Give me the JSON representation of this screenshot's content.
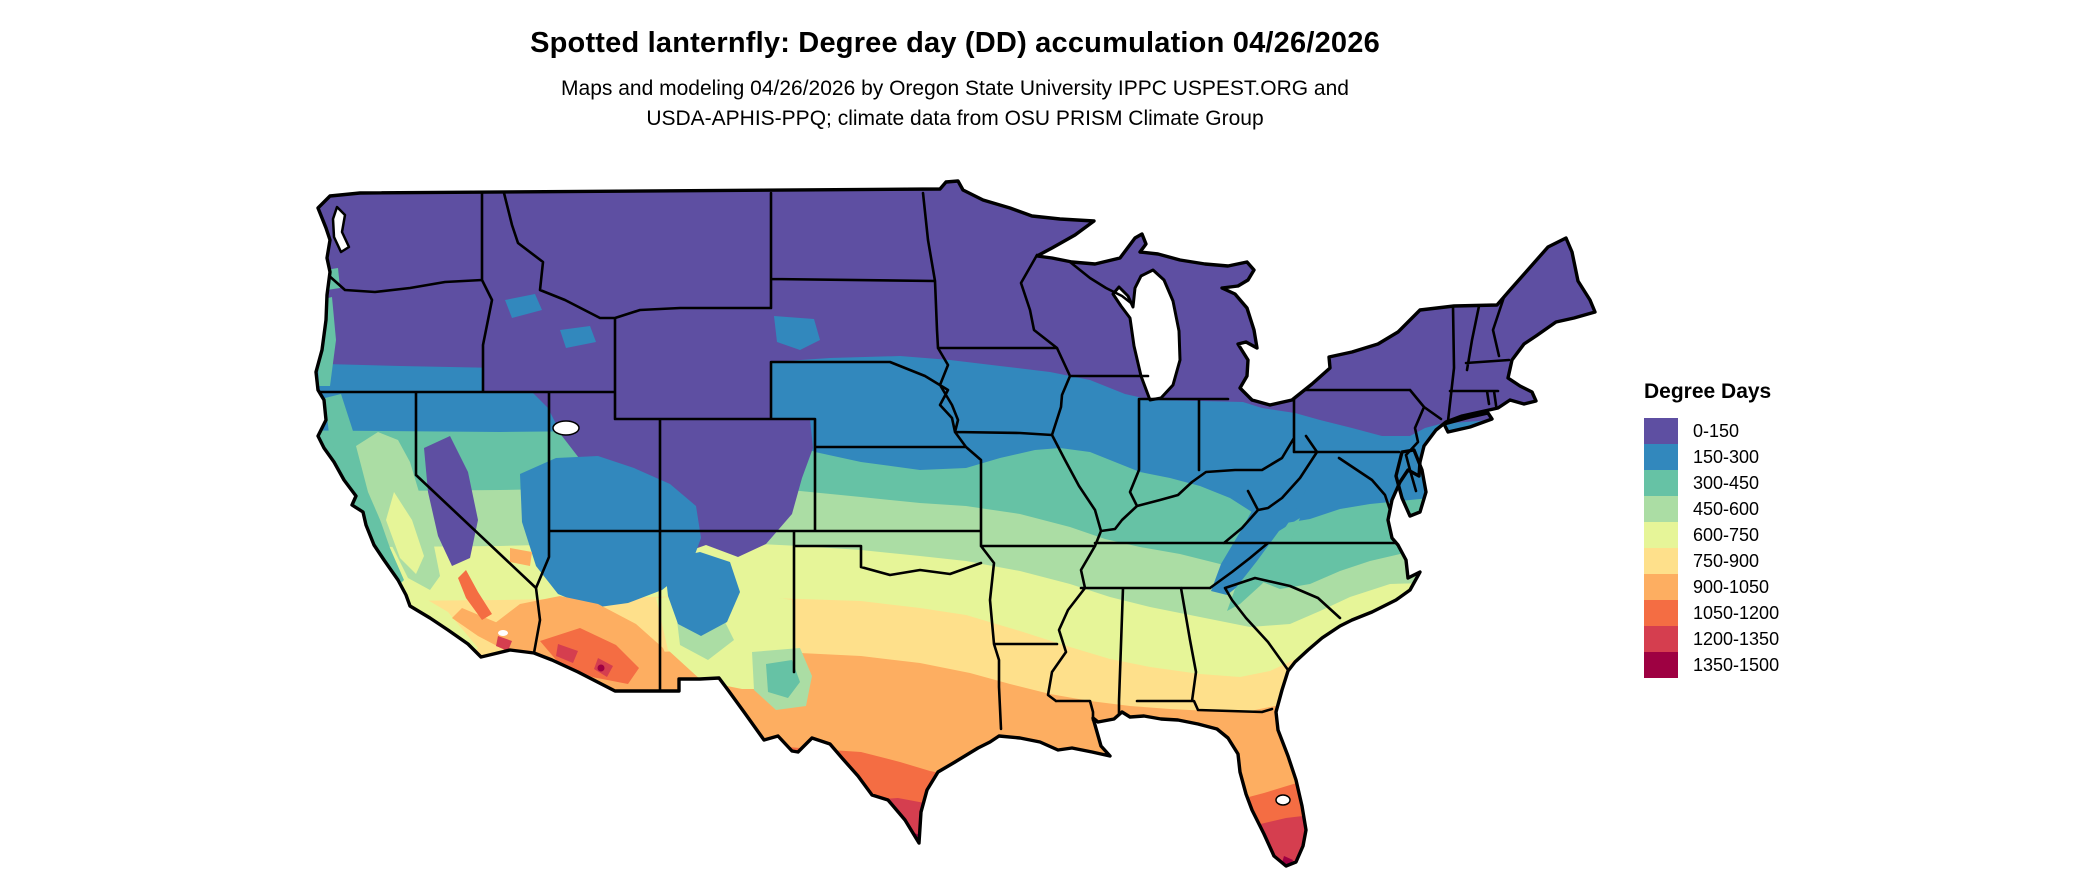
{
  "header": {
    "title": "Spotted lanternfly: Degree day (DD) accumulation 04/26/2026",
    "subtitle_line1": "Maps and modeling 04/26/2026 by Oregon State University IPPC USPEST.ORG and",
    "subtitle_line2": "USDA-APHIS-PPQ; climate data from OSU PRISM Climate Group"
  },
  "legend": {
    "title": "Degree Days",
    "items": [
      {
        "label": "0-150",
        "color": "#5e4fa2"
      },
      {
        "label": "150-300",
        "color": "#3288bd"
      },
      {
        "label": "300-450",
        "color": "#66c2a5"
      },
      {
        "label": "450-600",
        "color": "#abdda4"
      },
      {
        "label": "600-750",
        "color": "#e6f598"
      },
      {
        "label": "750-900",
        "color": "#fee08b"
      },
      {
        "label": "900-1050",
        "color": "#fdae61"
      },
      {
        "label": "1050-1200",
        "color": "#f46d43"
      },
      {
        "label": "1200-1350",
        "color": "#d53e4f"
      },
      {
        "label": "1350-1500",
        "color": "#9e0142"
      }
    ]
  }
}
